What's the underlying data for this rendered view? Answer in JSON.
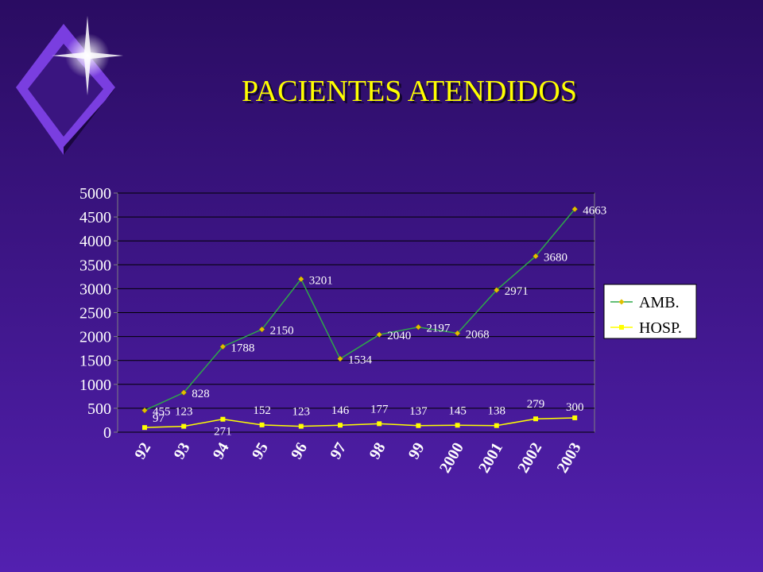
{
  "chart_data": {
    "type": "line",
    "title": "PACIENTES ATENDIDOS",
    "categories": [
      "92",
      "93",
      "94",
      "95",
      "96",
      "97",
      "98",
      "99",
      "2000",
      "2001",
      "2002",
      "2003"
    ],
    "series": [
      {
        "name": "AMB.",
        "color": "#2ea84a",
        "marker": "diamond",
        "marker_color": "#e0c000",
        "values": [
          455,
          828,
          1788,
          2150,
          3201,
          1534,
          2040,
          2197,
          2068,
          2971,
          3680,
          4663
        ]
      },
      {
        "name": "HOSP.",
        "color": "#ffff00",
        "marker": "square",
        "marker_color": "#ffff00",
        "values": [
          97,
          123,
          271,
          152,
          123,
          146,
          177,
          137,
          145,
          138,
          279,
          300
        ]
      }
    ],
    "ylim": [
      0,
      5000
    ],
    "yticks": [
      0,
      500,
      1000,
      1500,
      2000,
      2500,
      3000,
      3500,
      4000,
      4500,
      5000
    ],
    "grid": true,
    "legend": "right"
  }
}
